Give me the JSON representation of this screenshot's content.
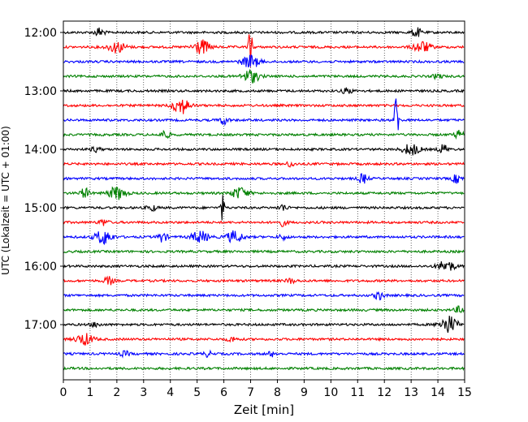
{
  "chart_data": {
    "type": "line",
    "title": "",
    "xlabel": "Zeit  [min]",
    "ylabel": "UTC (Lokalzeit = UTC + 01:00)",
    "xlim": [
      0,
      15
    ],
    "x_ticks": [
      0,
      1,
      2,
      3,
      4,
      5,
      6,
      7,
      8,
      9,
      10,
      11,
      12,
      13,
      14,
      15
    ],
    "y_tick_labels": [
      "12:00",
      "13:00",
      "14:00",
      "15:00",
      "16:00",
      "17:00"
    ],
    "grid": "vertical dotted at each minute",
    "trace_interval_minutes": 15,
    "colors_cycle": [
      "#000000",
      "#ff0000",
      "#0000ff",
      "#008000"
    ],
    "series": [
      {
        "start": "12:00",
        "color": "#000000",
        "events": [
          {
            "t": 1.35,
            "amp": 6
          },
          {
            "t": 13.2,
            "amp": 6
          }
        ]
      },
      {
        "start": "12:15",
        "color": "#ff0000",
        "events": [
          {
            "t": 2.0,
            "amp": 7
          },
          {
            "t": 5.15,
            "amp": 9
          },
          {
            "t": 7.0,
            "amp": 30
          },
          {
            "t": 13.4,
            "amp": 7
          }
        ]
      },
      {
        "start": "12:30",
        "color": "#0000ff",
        "events": [
          {
            "t": 7.0,
            "amp": 8
          }
        ]
      },
      {
        "start": "12:45",
        "color": "#008000",
        "events": [
          {
            "t": 7.0,
            "amp": 8
          },
          {
            "t": 14.0,
            "amp": 3
          }
        ]
      },
      {
        "start": "13:00",
        "color": "#000000",
        "events": [
          {
            "t": 10.6,
            "amp": 4
          }
        ]
      },
      {
        "start": "13:15",
        "color": "#ff0000",
        "events": [
          {
            "t": 4.4,
            "amp": 10
          }
        ]
      },
      {
        "start": "13:30",
        "color": "#0000ff",
        "events": [
          {
            "t": 6.0,
            "amp": 5
          },
          {
            "t": 12.45,
            "amp": 40
          }
        ]
      },
      {
        "start": "13:45",
        "color": "#008000",
        "events": [
          {
            "t": 3.8,
            "amp": 5
          },
          {
            "t": 14.8,
            "amp": 5
          }
        ]
      },
      {
        "start": "14:00",
        "color": "#000000",
        "events": [
          {
            "t": 1.2,
            "amp": 3
          },
          {
            "t": 13.0,
            "amp": 7
          },
          {
            "t": 14.2,
            "amp": 6
          }
        ]
      },
      {
        "start": "14:15",
        "color": "#ff0000",
        "events": [
          {
            "t": 8.5,
            "amp": 3
          }
        ]
      },
      {
        "start": "14:30",
        "color": "#0000ff",
        "events": [
          {
            "t": 11.2,
            "amp": 6
          },
          {
            "t": 14.7,
            "amp": 5
          }
        ]
      },
      {
        "start": "14:45",
        "color": "#008000",
        "events": [
          {
            "t": 0.8,
            "amp": 6
          },
          {
            "t": 2.0,
            "amp": 8
          },
          {
            "t": 6.6,
            "amp": 7
          }
        ]
      },
      {
        "start": "15:00",
        "color": "#000000",
        "events": [
          {
            "t": 5.95,
            "amp": 16
          },
          {
            "t": 3.3,
            "amp": 4
          },
          {
            "t": 8.2,
            "amp": 4
          }
        ]
      },
      {
        "start": "15:15",
        "color": "#ff0000",
        "events": [
          {
            "t": 1.5,
            "amp": 4
          },
          {
            "t": 8.2,
            "amp": 4
          }
        ]
      },
      {
        "start": "15:30",
        "color": "#0000ff",
        "events": [
          {
            "t": 1.5,
            "amp": 9
          },
          {
            "t": 3.7,
            "amp": 6
          },
          {
            "t": 5.1,
            "amp": 7
          },
          {
            "t": 6.4,
            "amp": 7
          },
          {
            "t": 8.2,
            "amp": 3
          }
        ]
      },
      {
        "start": "15:45",
        "color": "#008000",
        "events": []
      },
      {
        "start": "16:00",
        "color": "#000000",
        "events": [
          {
            "t": 14.3,
            "amp": 7
          }
        ]
      },
      {
        "start": "16:15",
        "color": "#ff0000",
        "events": [
          {
            "t": 1.7,
            "amp": 5
          },
          {
            "t": 8.5,
            "amp": 3
          }
        ]
      },
      {
        "start": "16:30",
        "color": "#0000ff",
        "events": [
          {
            "t": 11.8,
            "amp": 5
          }
        ]
      },
      {
        "start": "16:45",
        "color": "#008000",
        "events": [
          {
            "t": 14.8,
            "amp": 4
          }
        ]
      },
      {
        "start": "17:00",
        "color": "#000000",
        "events": [
          {
            "t": 1.2,
            "amp": 3
          },
          {
            "t": 14.4,
            "amp": 11
          }
        ]
      },
      {
        "start": "17:15",
        "color": "#ff0000",
        "events": [
          {
            "t": 0.8,
            "amp": 7
          },
          {
            "t": 6.3,
            "amp": 3
          }
        ]
      },
      {
        "start": "17:30",
        "color": "#0000ff",
        "events": [
          {
            "t": 2.3,
            "amp": 3
          },
          {
            "t": 5.4,
            "amp": 3
          },
          {
            "t": 7.8,
            "amp": 3
          }
        ]
      },
      {
        "start": "17:45",
        "color": "#008000",
        "events": []
      }
    ]
  }
}
